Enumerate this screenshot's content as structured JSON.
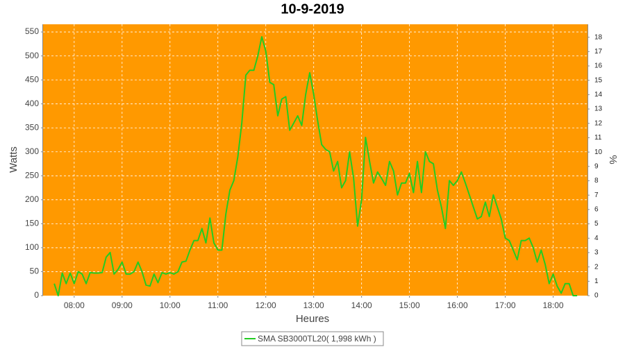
{
  "chart_data": {
    "type": "line",
    "title": "10-9-2019",
    "xlabel": "Heures",
    "ylabel": "Watts",
    "y2label": "%",
    "background": "#ff9900",
    "grid": true,
    "xlim": [
      "07:21",
      "18:43"
    ],
    "xticks": [
      "08:00",
      "09:00",
      "10:00",
      "11:00",
      "12:00",
      "13:00",
      "14:00",
      "15:00",
      "16:00",
      "17:00",
      "18:00"
    ],
    "ylim": [
      0,
      566
    ],
    "yticks": [
      0,
      50,
      100,
      150,
      200,
      250,
      300,
      350,
      400,
      450,
      500,
      550
    ],
    "y2lim": [
      0,
      18.9
    ],
    "y2ticks": [
      0,
      1,
      2,
      3,
      4,
      5,
      6,
      7,
      8,
      9,
      10,
      11,
      12,
      13,
      14,
      15,
      16,
      17,
      18
    ],
    "x": [
      "07:35",
      "07:40",
      "07:45",
      "07:50",
      "07:55",
      "08:00",
      "08:05",
      "08:10",
      "08:15",
      "08:20",
      "08:25",
      "08:30",
      "08:35",
      "08:40",
      "08:45",
      "08:50",
      "08:55",
      "09:00",
      "09:05",
      "09:10",
      "09:15",
      "09:20",
      "09:25",
      "09:30",
      "09:35",
      "09:40",
      "09:45",
      "09:50",
      "09:55",
      "10:00",
      "10:05",
      "10:10",
      "10:15",
      "10:20",
      "10:25",
      "10:30",
      "10:35",
      "10:40",
      "10:45",
      "10:50",
      "10:55",
      "11:00",
      "11:05",
      "11:10",
      "11:15",
      "11:20",
      "11:25",
      "11:30",
      "11:35",
      "11:40",
      "11:45",
      "11:50",
      "11:55",
      "12:00",
      "12:05",
      "12:10",
      "12:15",
      "12:20",
      "12:25",
      "12:30",
      "12:35",
      "12:40",
      "12:45",
      "12:50",
      "12:55",
      "13:00",
      "13:05",
      "13:10",
      "13:15",
      "13:20",
      "13:25",
      "13:30",
      "13:35",
      "13:40",
      "13:45",
      "13:50",
      "13:55",
      "14:00",
      "14:05",
      "14:10",
      "14:15",
      "14:20",
      "14:25",
      "14:30",
      "14:35",
      "14:40",
      "14:45",
      "14:50",
      "14:55",
      "15:00",
      "15:05",
      "15:10",
      "15:15",
      "15:20",
      "15:25",
      "15:30",
      "15:35",
      "15:40",
      "15:45",
      "15:50",
      "15:55",
      "16:00",
      "16:05",
      "16:10",
      "16:15",
      "16:20",
      "16:25",
      "16:30",
      "16:35",
      "16:40",
      "16:45",
      "16:50",
      "16:55",
      "17:00",
      "17:05",
      "17:10",
      "17:15",
      "17:20",
      "17:25",
      "17:30",
      "17:35",
      "17:40",
      "17:45",
      "17:50",
      "17:55",
      "18:00",
      "18:05",
      "18:10",
      "18:15",
      "18:20",
      "18:25",
      "18:30"
    ],
    "series": [
      {
        "name": "SMA SB3000TL20( 1,998 kWh )",
        "color": "#22cc22",
        "values": [
          25,
          0,
          47,
          25,
          47,
          25,
          50,
          45,
          25,
          48,
          47,
          47,
          48,
          80,
          90,
          45,
          55,
          70,
          45,
          45,
          50,
          70,
          50,
          22,
          20,
          45,
          27,
          48,
          45,
          48,
          45,
          50,
          70,
          72,
          95,
          115,
          115,
          140,
          110,
          162,
          110,
          95,
          95,
          170,
          220,
          240,
          290,
          360,
          460,
          470,
          470,
          500,
          540,
          510,
          445,
          440,
          375,
          410,
          415,
          345,
          360,
          375,
          355,
          420,
          465,
          420,
          365,
          315,
          305,
          300,
          260,
          280,
          225,
          240,
          300,
          245,
          145,
          200,
          330,
          280,
          235,
          258,
          245,
          230,
          280,
          260,
          210,
          235,
          235,
          255,
          215,
          280,
          215,
          300,
          280,
          275,
          220,
          185,
          140,
          240,
          230,
          240,
          258,
          235,
          210,
          185,
          160,
          165,
          195,
          165,
          210,
          185,
          160,
          120,
          115,
          95,
          75,
          115,
          115,
          120,
          100,
          70,
          95,
          65,
          25,
          45,
          20,
          5,
          25,
          25,
          0,
          0
        ]
      }
    ]
  }
}
